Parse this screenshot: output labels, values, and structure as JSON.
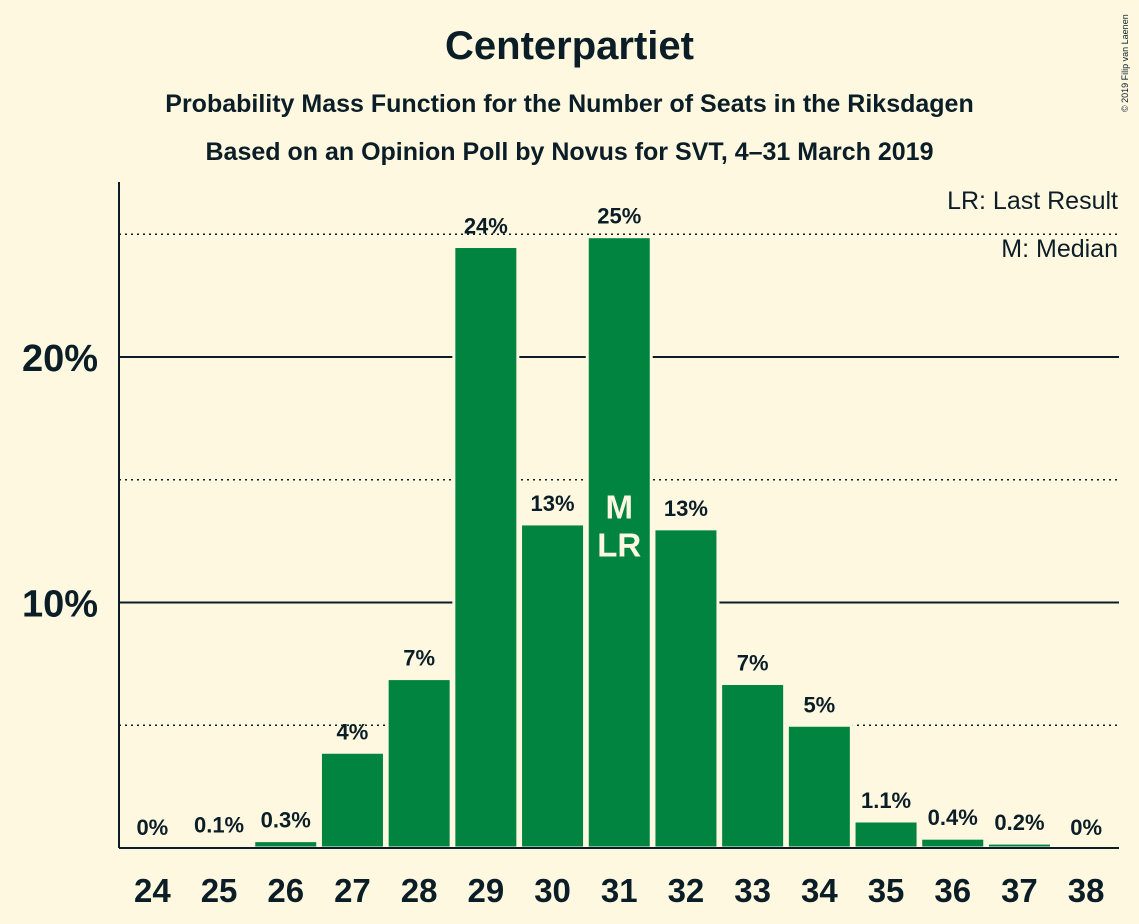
{
  "title": "Centerpartiet",
  "subtitle1": "Probability Mass Function for the Number of Seats in the Riksdagen",
  "subtitle2": "Based on an Opinion Poll by Novus for SVT, 4–31 March 2019",
  "copyright": "© 2019 Filip van Laenen",
  "legend": {
    "lr": "LR: Last Result",
    "m": "M: Median"
  },
  "markers": {
    "median": "M",
    "last_result": "LR"
  },
  "colors": {
    "bar": "#00843f",
    "background": "#fef8e1",
    "text": "#0b1d26"
  },
  "chart_data": {
    "type": "bar",
    "categories": [
      "24",
      "25",
      "26",
      "27",
      "28",
      "29",
      "30",
      "31",
      "32",
      "33",
      "34",
      "35",
      "36",
      "37",
      "38"
    ],
    "values": [
      0,
      0.1,
      0.3,
      3.9,
      6.9,
      24.5,
      13.2,
      24.9,
      13.0,
      6.7,
      5.0,
      1.1,
      0.4,
      0.2,
      0
    ],
    "labels": [
      "0%",
      "0.1%",
      "0.3%",
      "4%",
      "7%",
      "24%",
      "13%",
      "25%",
      "13%",
      "7%",
      "5%",
      "1.1%",
      "0.4%",
      "0.2%",
      "0%"
    ],
    "ylim": [
      0,
      27
    ],
    "yticks": [
      10,
      20
    ],
    "ytick_labels": [
      "10%",
      "20%"
    ],
    "minor_gridlines": [
      5,
      15,
      25
    ],
    "median_category": "31",
    "last_result_category": "31",
    "legend_position": "top-right"
  }
}
